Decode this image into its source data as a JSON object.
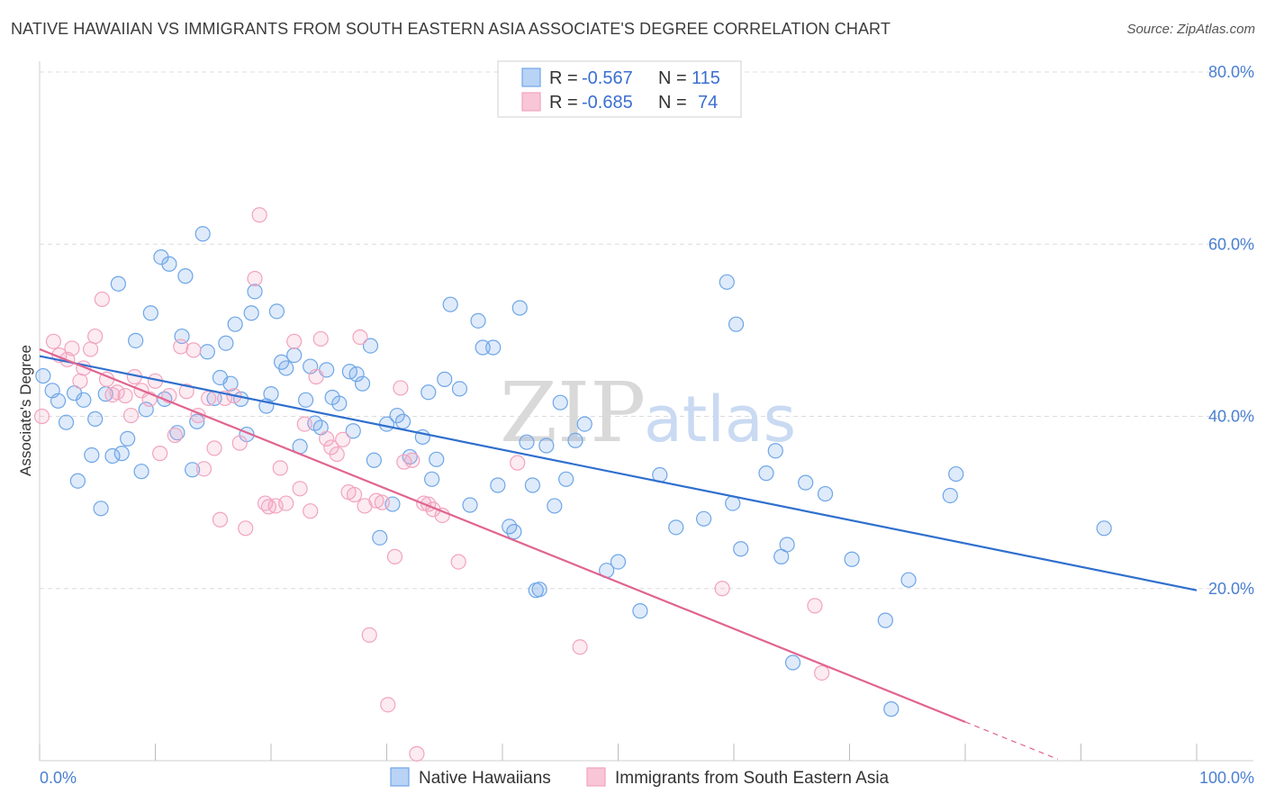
{
  "title": "NATIVE HAWAIIAN VS IMMIGRANTS FROM SOUTH EASTERN ASIA ASSOCIATE'S DEGREE CORRELATION CHART",
  "source": "Source: ZipAtlas.com",
  "watermark": {
    "zip": "ZIP",
    "atlas": "atlas"
  },
  "legend": {
    "r_label": "R =",
    "n_label": "N =",
    "series": [
      {
        "r": "-0.567",
        "n": "115"
      },
      {
        "r": "-0.685",
        "n": "74"
      }
    ]
  },
  "chart_data": {
    "type": "scatter",
    "title": "NATIVE HAWAIIAN VS IMMIGRANTS FROM SOUTH EASTERN ASIA ASSOCIATE'S DEGREE CORRELATION CHART",
    "xlabel": "",
    "ylabel": "Associate's Degree",
    "xlim": [
      0,
      100
    ],
    "ylim": [
      0,
      80
    ],
    "y_ticks": [
      "20.0%",
      "40.0%",
      "60.0%",
      "80.0%"
    ],
    "x_ticks": [
      "0.0%",
      "100.0%"
    ],
    "grid": true,
    "legend_position": "top-center",
    "series": [
      {
        "name": "Native Hawaiians",
        "color": "#6ea6e8",
        "line_color": "#2f6fce",
        "r": -0.567,
        "n": 115,
        "trend": {
          "x": [
            0,
            100
          ],
          "y": [
            47.0,
            19.8
          ]
        },
        "points": [
          [
            0.3,
            44.7
          ],
          [
            1.1,
            43.0
          ],
          [
            1.6,
            41.8
          ],
          [
            2.3,
            39.3
          ],
          [
            3.0,
            42.7
          ],
          [
            3.3,
            32.5
          ],
          [
            3.8,
            41.9
          ],
          [
            4.5,
            35.5
          ],
          [
            4.8,
            39.7
          ],
          [
            5.3,
            29.3
          ],
          [
            5.7,
            42.6
          ],
          [
            6.3,
            35.4
          ],
          [
            6.8,
            55.4
          ],
          [
            7.1,
            35.7
          ],
          [
            7.6,
            37.4
          ],
          [
            8.3,
            48.8
          ],
          [
            8.8,
            33.6
          ],
          [
            9.2,
            40.8
          ],
          [
            9.6,
            52.0
          ],
          [
            10.5,
            58.5
          ],
          [
            10.8,
            42.0
          ],
          [
            11.2,
            57.7
          ],
          [
            11.9,
            38.1
          ],
          [
            12.3,
            49.3
          ],
          [
            12.6,
            56.3
          ],
          [
            13.2,
            33.8
          ],
          [
            13.6,
            39.4
          ],
          [
            14.1,
            61.2
          ],
          [
            14.5,
            47.5
          ],
          [
            15.1,
            42.1
          ],
          [
            15.6,
            44.5
          ],
          [
            16.1,
            48.5
          ],
          [
            16.5,
            43.8
          ],
          [
            16.9,
            50.7
          ],
          [
            17.4,
            42.0
          ],
          [
            17.9,
            37.9
          ],
          [
            18.3,
            52.0
          ],
          [
            18.6,
            54.5
          ],
          [
            19.6,
            41.2
          ],
          [
            20.0,
            42.6
          ],
          [
            20.5,
            52.2
          ],
          [
            20.9,
            46.3
          ],
          [
            21.3,
            45.6
          ],
          [
            22.0,
            47.1
          ],
          [
            22.5,
            36.5
          ],
          [
            23.0,
            41.9
          ],
          [
            23.4,
            45.8
          ],
          [
            23.8,
            39.2
          ],
          [
            24.3,
            38.7
          ],
          [
            24.8,
            45.4
          ],
          [
            25.3,
            42.2
          ],
          [
            25.9,
            41.5
          ],
          [
            26.8,
            45.2
          ],
          [
            27.1,
            38.3
          ],
          [
            27.4,
            44.9
          ],
          [
            27.9,
            43.8
          ],
          [
            28.6,
            48.2
          ],
          [
            28.9,
            34.9
          ],
          [
            29.4,
            25.9
          ],
          [
            30.0,
            39.1
          ],
          [
            30.5,
            29.8
          ],
          [
            30.9,
            40.1
          ],
          [
            31.4,
            39.4
          ],
          [
            32.0,
            35.3
          ],
          [
            33.1,
            37.6
          ],
          [
            33.6,
            42.8
          ],
          [
            33.9,
            32.7
          ],
          [
            34.3,
            35.0
          ],
          [
            35.0,
            44.3
          ],
          [
            35.5,
            53.0
          ],
          [
            36.3,
            43.2
          ],
          [
            37.2,
            29.7
          ],
          [
            37.9,
            51.1
          ],
          [
            38.3,
            48.0
          ],
          [
            39.2,
            48.0
          ],
          [
            39.6,
            32.0
          ],
          [
            40.6,
            27.2
          ],
          [
            41.0,
            26.6
          ],
          [
            41.5,
            52.6
          ],
          [
            42.1,
            37.0
          ],
          [
            42.6,
            32.0
          ],
          [
            42.9,
            19.8
          ],
          [
            43.2,
            19.9
          ],
          [
            43.8,
            36.6
          ],
          [
            44.5,
            29.6
          ],
          [
            45.0,
            41.6
          ],
          [
            45.5,
            32.7
          ],
          [
            46.3,
            37.2
          ],
          [
            47.1,
            39.1
          ],
          [
            49.0,
            22.1
          ],
          [
            50.0,
            23.1
          ],
          [
            51.9,
            17.4
          ],
          [
            53.6,
            33.2
          ],
          [
            55.0,
            27.1
          ],
          [
            57.4,
            28.1
          ],
          [
            59.4,
            55.6
          ],
          [
            59.9,
            29.9
          ],
          [
            60.2,
            50.7
          ],
          [
            60.6,
            24.6
          ],
          [
            62.8,
            33.4
          ],
          [
            63.6,
            36.0
          ],
          [
            64.1,
            23.7
          ],
          [
            64.6,
            25.1
          ],
          [
            65.1,
            11.4
          ],
          [
            66.2,
            32.3
          ],
          [
            67.9,
            31.0
          ],
          [
            70.2,
            23.4
          ],
          [
            73.1,
            16.3
          ],
          [
            73.6,
            6.0
          ],
          [
            75.1,
            21.0
          ],
          [
            78.7,
            30.8
          ],
          [
            79.2,
            33.3
          ],
          [
            92.0,
            27.0
          ]
        ]
      },
      {
        "name": "Immigrants from South Eastern Asia",
        "color": "#f2a3bf",
        "line_color": "#e0648f",
        "r": -0.685,
        "n": 74,
        "trend": {
          "x": [
            0,
            80
          ],
          "y": [
            47.8,
            4.5
          ]
        },
        "points": [
          [
            0.2,
            40.0
          ],
          [
            1.2,
            48.7
          ],
          [
            1.7,
            47.1
          ],
          [
            2.4,
            46.6
          ],
          [
            2.8,
            47.9
          ],
          [
            3.5,
            44.1
          ],
          [
            3.8,
            45.6
          ],
          [
            4.4,
            47.8
          ],
          [
            4.8,
            49.3
          ],
          [
            5.4,
            53.6
          ],
          [
            5.8,
            44.3
          ],
          [
            6.3,
            42.5
          ],
          [
            6.7,
            42.8
          ],
          [
            7.4,
            42.4
          ],
          [
            7.9,
            40.1
          ],
          [
            8.2,
            44.6
          ],
          [
            8.8,
            43.0
          ],
          [
            9.5,
            42.0
          ],
          [
            10.0,
            44.1
          ],
          [
            10.4,
            35.7
          ],
          [
            11.2,
            42.4
          ],
          [
            11.7,
            37.8
          ],
          [
            12.2,
            48.1
          ],
          [
            12.7,
            42.9
          ],
          [
            13.3,
            47.7
          ],
          [
            13.7,
            40.1
          ],
          [
            14.2,
            33.9
          ],
          [
            14.6,
            42.1
          ],
          [
            15.1,
            36.3
          ],
          [
            15.6,
            28.0
          ],
          [
            16.0,
            42.1
          ],
          [
            16.8,
            42.4
          ],
          [
            17.3,
            36.9
          ],
          [
            17.8,
            27.0
          ],
          [
            18.6,
            56.0
          ],
          [
            19.0,
            63.4
          ],
          [
            19.5,
            29.9
          ],
          [
            19.8,
            29.5
          ],
          [
            20.4,
            29.6
          ],
          [
            20.8,
            34.0
          ],
          [
            21.3,
            29.9
          ],
          [
            22.0,
            48.7
          ],
          [
            22.5,
            31.6
          ],
          [
            22.9,
            39.1
          ],
          [
            23.4,
            29.0
          ],
          [
            23.9,
            44.6
          ],
          [
            24.3,
            49.0
          ],
          [
            24.8,
            37.4
          ],
          [
            25.2,
            36.4
          ],
          [
            25.7,
            35.6
          ],
          [
            26.2,
            37.3
          ],
          [
            26.7,
            31.2
          ],
          [
            27.2,
            30.9
          ],
          [
            27.7,
            49.2
          ],
          [
            28.1,
            29.6
          ],
          [
            28.5,
            14.6
          ],
          [
            29.1,
            30.2
          ],
          [
            29.6,
            30.0
          ],
          [
            30.1,
            6.5
          ],
          [
            30.7,
            23.7
          ],
          [
            31.2,
            43.3
          ],
          [
            31.5,
            34.7
          ],
          [
            32.2,
            34.9
          ],
          [
            32.6,
            0.8
          ],
          [
            33.2,
            29.9
          ],
          [
            33.6,
            29.8
          ],
          [
            34.0,
            29.2
          ],
          [
            34.8,
            28.5
          ],
          [
            36.2,
            23.1
          ],
          [
            41.3,
            34.6
          ],
          [
            46.7,
            13.2
          ],
          [
            59.0,
            20.0
          ],
          [
            67.0,
            18.0
          ],
          [
            67.6,
            10.2
          ]
        ]
      }
    ]
  },
  "bottom_legend": [
    {
      "label": "Native Hawaiians"
    },
    {
      "label": "Immigrants from South Eastern Asia"
    }
  ]
}
